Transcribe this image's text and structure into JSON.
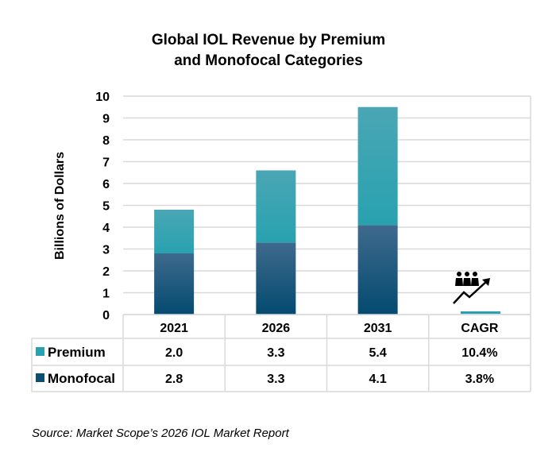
{
  "chart_data": {
    "type": "bar",
    "stacked": true,
    "title_lines": [
      "Global IOL Revenue by Premium",
      "and Monofocal Categories"
    ],
    "ylabel": "Billions of Dollars",
    "xlabel": "",
    "ylim": [
      0,
      10
    ],
    "yticks": [
      "0",
      "1",
      "2",
      "3",
      "4",
      "5",
      "6",
      "7",
      "8",
      "9",
      "10"
    ],
    "grid": true,
    "categories": [
      "2021",
      "2026",
      "2031",
      "CAGR"
    ],
    "series": [
      {
        "name": "Monofocal",
        "values": [
          2.8,
          3.3,
          4.1,
          null
        ],
        "labels": [
          "2.8",
          "3.3",
          "4.1",
          "3.8%"
        ],
        "color": "#0b4f74",
        "color_top": "#3e6a8c"
      },
      {
        "name": "Premium",
        "values": [
          2.0,
          3.3,
          5.4,
          null
        ],
        "labels": [
          "2.0",
          "3.3",
          "5.4",
          "10.4%"
        ],
        "color": "#28a2b0",
        "color_top": "#4aa6b4"
      }
    ],
    "legend": "data-table",
    "icon": "people-growth-arrow-icon"
  },
  "source": "Source: Market Scope’s 2026 IOL Market Report"
}
